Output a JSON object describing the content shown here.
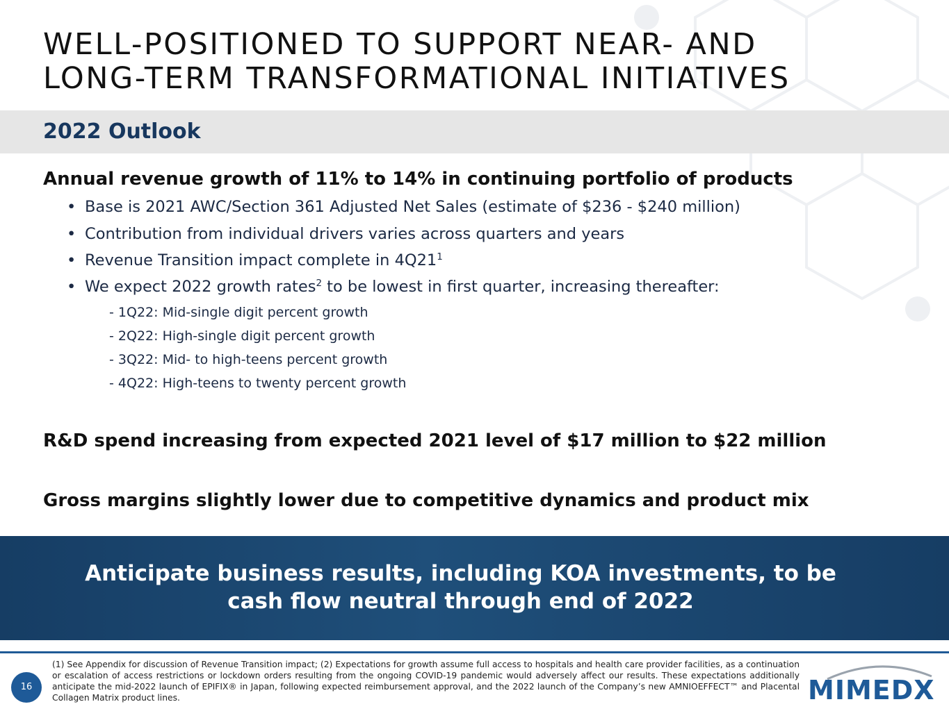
{
  "title": [
    "WELL-POSITIONED TO SUPPORT NEAR- AND",
    "LONG-TERM TRANSFORMATIONAL INITIATIVES"
  ],
  "section": "2022 Outlook",
  "points": [
    {
      "heading": "Annual revenue growth of 11% to 14% in continuing portfolio of products",
      "bullets": [
        {
          "text": "Base is 2021 AWC/Section 361 Adjusted Net Sales (estimate of $236 - $240 million)"
        },
        {
          "text": "Contribution from individual drivers varies across quarters and years"
        },
        {
          "text": "Revenue Transition impact complete in 4Q21",
          "sup": "1"
        },
        {
          "text": "We expect 2022 growth rates",
          "sup": "2",
          "after": " to be lowest in first quarter, increasing thereafter:"
        }
      ],
      "subs": [
        "1Q22: Mid-single digit percent growth",
        "2Q22: High-single digit percent growth",
        "3Q22: Mid- to high-teens percent growth",
        "4Q22: High-teens to twenty percent growth"
      ]
    },
    {
      "heading": "R&D spend increasing from expected 2021 level of $17 million to $22 million"
    },
    {
      "heading": "Gross margins slightly lower due to competitive dynamics and product mix"
    }
  ],
  "banner": [
    "Anticipate business results, including KOA investments, to be",
    "cash flow neutral through end of 2022"
  ],
  "footnote": "(1) See Appendix for discussion of Revenue Transition impact; (2) Expectations for growth assume full access to hospitals and health care provider facilities, as a continuation or escalation of access restrictions or lockdown orders resulting from the ongoing COVID-19 pandemic would adversely affect our results. These expectations additionally anticipate the mid-2022 launch of EPIFIX® in Japan, following expected reimbursement approval, and the 2022 launch of the Company’s new AMNIOEFFECT™ and Placental Collagen Matrix product lines.",
  "page_number": "16",
  "logo": "MIMEDX"
}
